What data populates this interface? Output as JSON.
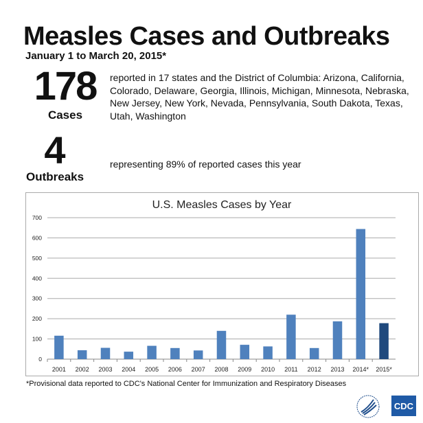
{
  "header": {
    "title": "Measles Cases and Outbreaks",
    "subtitle": "January 1 to March 20, 2015*"
  },
  "cases": {
    "number": "178",
    "label": "Cases",
    "description": "reported in 17 states and the District of Columbia: Arizona, California, Colorado, Delaware, Georgia, Illinois, Michigan, Minnesota, Nebraska, New Jersey, New York, Nevada, Pennsylvania, South Dakota, Texas, Utah, Washington"
  },
  "outbreaks": {
    "number": "4",
    "label": "Outbreaks",
    "description": "representing 89% of reported cases this year"
  },
  "footnote": "*Provisional data reported to CDC's National Center for Immunization and Respiratory Diseases",
  "logos": {
    "cdc": "CDC"
  },
  "chart_data": {
    "type": "bar",
    "title": "U.S. Measles Cases by Year",
    "xlabel": "",
    "ylabel": "",
    "categories": [
      "2001",
      "2002",
      "2003",
      "2004",
      "2005",
      "2006",
      "2007",
      "2008",
      "2009",
      "2010",
      "2011",
      "2012",
      "2013",
      "2014*",
      "2015*"
    ],
    "values": [
      116,
      44,
      56,
      37,
      66,
      55,
      43,
      140,
      71,
      63,
      220,
      55,
      187,
      644,
      178
    ],
    "ylim": [
      0,
      700
    ],
    "yticks": [
      0,
      100,
      200,
      300,
      400,
      500,
      600,
      700
    ],
    "grid": true,
    "colors": {
      "bar": "#4f81bd",
      "highlight": "#1f497d",
      "highlight_category": "2015*"
    }
  }
}
